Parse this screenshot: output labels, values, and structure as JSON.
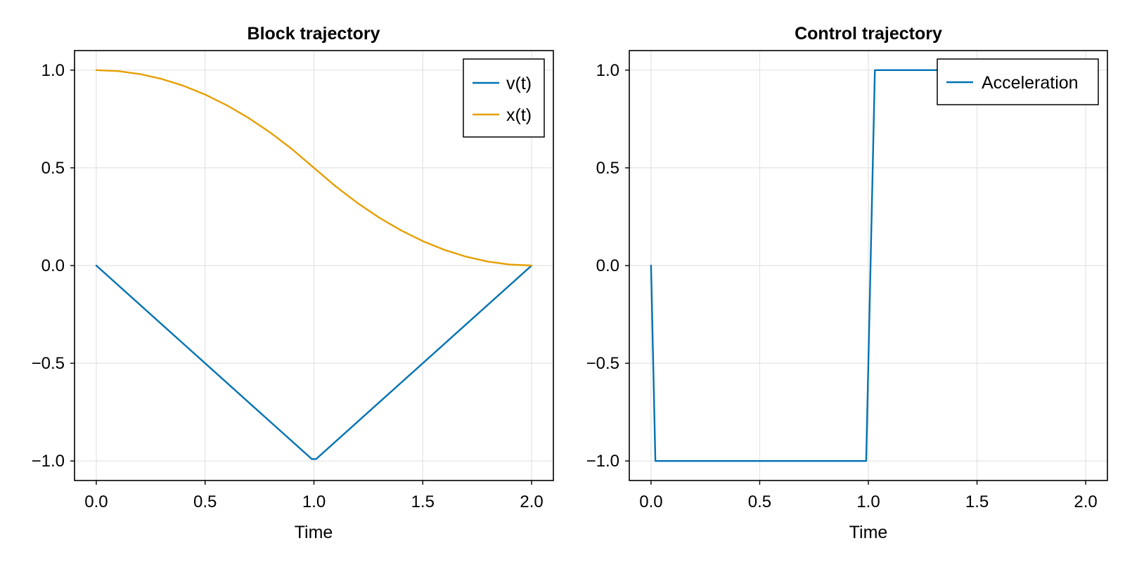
{
  "chart_data": [
    {
      "type": "line",
      "title": "Block trajectory",
      "xlabel": "Time",
      "ylabel": "",
      "xlim": [
        -0.1,
        2.1
      ],
      "ylim": [
        -1.1,
        1.1
      ],
      "xticks": [
        "0.0",
        "0.5",
        "1.0",
        "1.5",
        "2.0"
      ],
      "xtick_values": [
        0,
        0.5,
        1.0,
        1.5,
        2.0
      ],
      "yticks": [
        "1.0",
        "0.5",
        "0.0",
        "−0.5",
        "−1.0"
      ],
      "ytick_values": [
        1.0,
        0.5,
        0.0,
        -0.5,
        -1.0
      ],
      "grid": true,
      "legend_position": "top-right",
      "series": [
        {
          "name": "v(t)",
          "color": "#0072b2",
          "x": [
            0.0,
            0.99,
            1.01,
            2.0
          ],
          "y": [
            0.0,
            -0.99,
            -0.99,
            0.0
          ]
        },
        {
          "name": "x(t)",
          "color": "#e69f00",
          "x": [
            0.0,
            0.1,
            0.2,
            0.3,
            0.4,
            0.5,
            0.6,
            0.7,
            0.8,
            0.9,
            1.0,
            1.1,
            1.2,
            1.3,
            1.4,
            1.5,
            1.6,
            1.7,
            1.8,
            1.9,
            2.0
          ],
          "y": [
            1.0,
            0.995,
            0.98,
            0.955,
            0.92,
            0.875,
            0.82,
            0.755,
            0.68,
            0.595,
            0.5,
            0.405,
            0.32,
            0.245,
            0.18,
            0.125,
            0.08,
            0.045,
            0.02,
            0.005,
            0.0
          ]
        }
      ]
    },
    {
      "type": "line",
      "title": "Control trajectory",
      "xlabel": "Time",
      "ylabel": "",
      "xlim": [
        -0.1,
        2.1
      ],
      "ylim": [
        -1.1,
        1.1
      ],
      "xticks": [
        "0.0",
        "0.5",
        "1.0",
        "1.5",
        "2.0"
      ],
      "xtick_values": [
        0,
        0.5,
        1.0,
        1.5,
        2.0
      ],
      "yticks": [
        "1.0",
        "0.5",
        "0.0",
        "−0.5",
        "−1.0"
      ],
      "ytick_values": [
        1.0,
        0.5,
        0.0,
        -0.5,
        -1.0
      ],
      "grid": true,
      "legend_position": "top-right",
      "series": [
        {
          "name": "Acceleration",
          "color": "#0072b2",
          "x": [
            0.0,
            0.02,
            0.99,
            1.03,
            2.0
          ],
          "y": [
            0.0,
            -1.0,
            -1.0,
            1.0,
            1.0
          ]
        }
      ]
    }
  ]
}
